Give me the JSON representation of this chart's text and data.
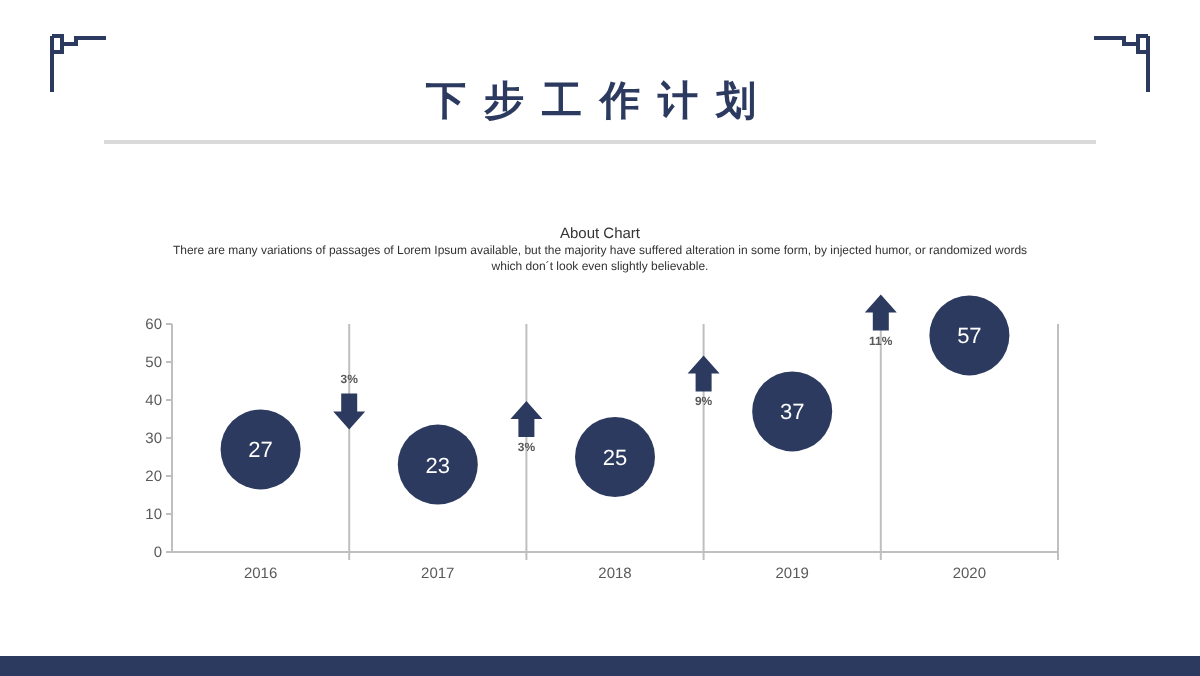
{
  "chart_data": {
    "type": "scatter",
    "title": "下步工作计划",
    "subtitle": "About Chart",
    "annotations": [
      "There are many variations of passages of Lorem Ipsum available, but the majority have suffered alteration in some form, by injected humor, or randomized words which don´t look even slightly believable.",
      "3%",
      "3%",
      "9%",
      "11%"
    ],
    "categories": [
      "2016",
      "2017",
      "2018",
      "2019",
      "2020"
    ],
    "series": [
      {
        "color": "#2b3a5e",
        "values": [
          27,
          23,
          25,
          37,
          57
        ]
      }
    ],
    "ylim": [
      0,
      60
    ],
    "yticks": [
      0,
      10,
      20,
      30,
      40,
      50,
      60
    ],
    "marker": "circle",
    "data_labels": true,
    "grid": "x"
  }
}
